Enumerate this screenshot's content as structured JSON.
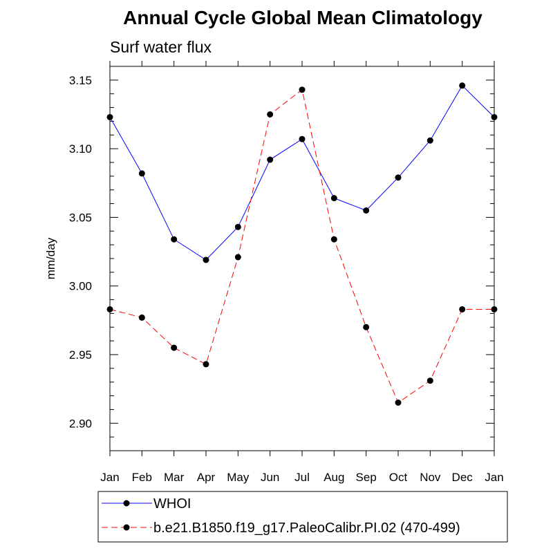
{
  "chart_data": {
    "type": "line",
    "title": "Annual Cycle Global Mean Climatology",
    "subtitle": "Surf water flux",
    "ylabel": "mm/day",
    "xlabel": "",
    "categories": [
      "Jan",
      "Feb",
      "Mar",
      "Apr",
      "May",
      "Jun",
      "Jul",
      "Aug",
      "Sep",
      "Oct",
      "Nov",
      "Dec",
      "Jan"
    ],
    "ylim": [
      2.88,
      3.16
    ],
    "yticks": [
      "2.90",
      "2.95",
      "3.00",
      "3.05",
      "3.10",
      "3.15"
    ],
    "grid": false,
    "legend_position": "bottom",
    "series": [
      {
        "name": "WHOI",
        "color": "#0000ff",
        "line_style": "solid",
        "marker": "filled-circle",
        "values": [
          3.123,
          3.082,
          3.034,
          3.019,
          3.043,
          3.092,
          3.107,
          3.064,
          3.055,
          3.079,
          3.106,
          3.146,
          3.123
        ]
      },
      {
        "name": "b.e21.B1850.f19_g17.PaleoCalibr.PI.02 (470-499)",
        "color": "#ff0000",
        "line_style": "dashed",
        "marker": "filled-circle",
        "values": [
          2.983,
          2.977,
          2.955,
          2.943,
          3.021,
          3.125,
          3.143,
          3.034,
          2.97,
          2.915,
          2.931,
          2.983,
          2.983
        ]
      }
    ]
  }
}
